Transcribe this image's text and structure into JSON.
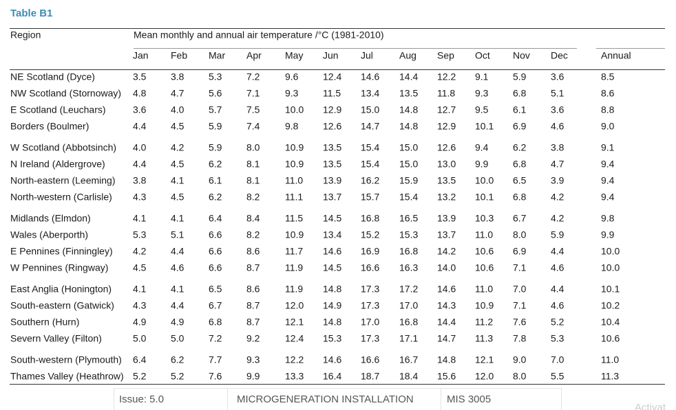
{
  "header": {
    "title": "Table B1",
    "region_label": "Region",
    "caption": "Mean monthly and annual air temperature /°C (1981-2010)"
  },
  "table": {
    "columns": [
      "Jan",
      "Feb",
      "Mar",
      "Apr",
      "May",
      "Jun",
      "Jul",
      "Aug",
      "Sep",
      "Oct",
      "Nov",
      "Dec",
      "Annual"
    ],
    "groups": [
      [
        [
          "NE Scotland (Dyce)",
          "3.5",
          "3.8",
          "5.3",
          "7.2",
          "9.6",
          "12.4",
          "14.6",
          "14.4",
          "12.2",
          "9.1",
          "5.9",
          "3.6",
          "8.5"
        ],
        [
          "NW Scotland (Stornoway)",
          "4.8",
          "4.7",
          "5.6",
          "7.1",
          "9.3",
          "11.5",
          "13.4",
          "13.5",
          "11.8",
          "9.3",
          "6.8",
          "5.1",
          "8.6"
        ],
        [
          "E Scotland (Leuchars)",
          "3.6",
          "4.0",
          "5.7",
          "7.5",
          "10.0",
          "12.9",
          "15.0",
          "14.8",
          "12.7",
          "9.5",
          "6.1",
          "3.6",
          "8.8"
        ],
        [
          "Borders (Boulmer)",
          "4.4",
          "4.5",
          "5.9",
          "7.4",
          "9.8",
          "12.6",
          "14.7",
          "14.8",
          "12.9",
          "10.1",
          "6.9",
          "4.6",
          "9.0"
        ]
      ],
      [
        [
          "W Scotland (Abbotsinch)",
          "4.0",
          "4.2",
          "5.9",
          "8.0",
          "10.9",
          "13.5",
          "15.4",
          "15.0",
          "12.6",
          "9.4",
          "6.2",
          "3.8",
          "9.1"
        ],
        [
          "N Ireland (Aldergrove)",
          "4.4",
          "4.5",
          "6.2",
          "8.1",
          "10.9",
          "13.5",
          "15.4",
          "15.0",
          "13.0",
          "9.9",
          "6.8",
          "4.7",
          "9.4"
        ],
        [
          "North-eastern (Leeming)",
          "3.8",
          "4.1",
          "6.1",
          "8.1",
          "11.0",
          "13.9",
          "16.2",
          "15.9",
          "13.5",
          "10.0",
          "6.5",
          "3.9",
          "9.4"
        ],
        [
          "North-western (Carlisle)",
          "4.3",
          "4.5",
          "6.2",
          "8.2",
          "11.1",
          "13.7",
          "15.7",
          "15.4",
          "13.2",
          "10.1",
          "6.8",
          "4.2",
          "9.4"
        ]
      ],
      [
        [
          "Midlands (Elmdon)",
          "4.1",
          "4.1",
          "6.4",
          "8.4",
          "11.5",
          "14.5",
          "16.8",
          "16.5",
          "13.9",
          "10.3",
          "6.7",
          "4.2",
          "9.8"
        ],
        [
          "Wales (Aberporth)",
          "5.3",
          "5.1",
          "6.6",
          "8.2",
          "10.9",
          "13.4",
          "15.2",
          "15.3",
          "13.7",
          "11.0",
          "8.0",
          "5.9",
          "9.9"
        ],
        [
          "E Pennines (Finningley)",
          "4.2",
          "4.4",
          "6.6",
          "8.6",
          "11.7",
          "14.6",
          "16.9",
          "16.8",
          "14.2",
          "10.6",
          "6.9",
          "4.4",
          "10.0"
        ],
        [
          "W Pennines (Ringway)",
          "4.5",
          "4.6",
          "6.6",
          "8.7",
          "11.9",
          "14.5",
          "16.6",
          "16.3",
          "14.0",
          "10.6",
          "7.1",
          "4.6",
          "10.0"
        ]
      ],
      [
        [
          "East Anglia (Honington)",
          "4.1",
          "4.1",
          "6.5",
          "8.6",
          "11.9",
          "14.8",
          "17.3",
          "17.2",
          "14.6",
          "11.0",
          "7.0",
          "4.4",
          "10.1"
        ],
        [
          "South-eastern (Gatwick)",
          "4.3",
          "4.4",
          "6.7",
          "8.7",
          "12.0",
          "14.9",
          "17.3",
          "17.0",
          "14.3",
          "10.9",
          "7.1",
          "4.6",
          "10.2"
        ],
        [
          "Southern (Hurn)",
          "4.9",
          "4.9",
          "6.8",
          "8.7",
          "12.1",
          "14.8",
          "17.0",
          "16.8",
          "14.4",
          "11.2",
          "7.6",
          "5.2",
          "10.4"
        ],
        [
          "Severn Valley (Filton)",
          "5.0",
          "5.0",
          "7.2",
          "9.2",
          "12.4",
          "15.3",
          "17.3",
          "17.1",
          "14.7",
          "11.3",
          "7.8",
          "5.3",
          "10.6"
        ]
      ],
      [
        [
          "South-western (Plymouth)",
          "6.4",
          "6.2",
          "7.7",
          "9.3",
          "12.2",
          "14.6",
          "16.6",
          "16.7",
          "14.8",
          "12.1",
          "9.0",
          "7.0",
          "11.0"
        ],
        [
          "Thames Valley (Heathrow)",
          "5.2",
          "5.2",
          "7.6",
          "9.9",
          "13.3",
          "16.4",
          "18.7",
          "18.4",
          "15.6",
          "12.0",
          "8.0",
          "5.5",
          "11.3"
        ]
      ]
    ]
  },
  "footer": {
    "issue": "Issue: 5.0",
    "scheme": "MICROGENERATION INSTALLATION",
    "standard": "MIS 3005",
    "watermark": "Activat"
  }
}
